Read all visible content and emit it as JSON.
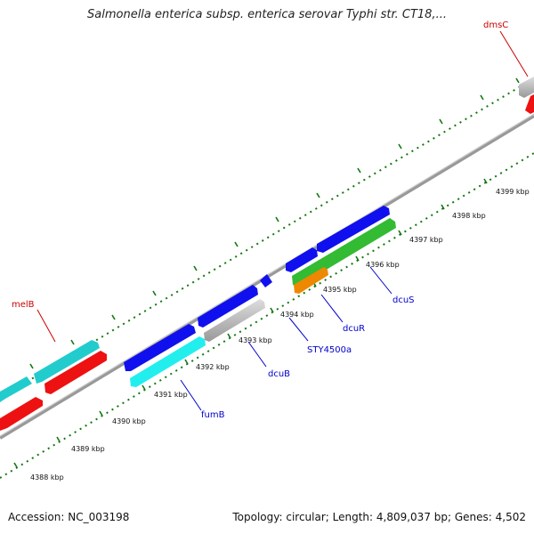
{
  "title": "Salmonella enterica subsp. enterica serovar Typhi str. CT18,...",
  "footer": {
    "accession": "Accession: NC_003198",
    "stats": "Topology: circular; Length: 4,809,037 bp; Genes: 4,502"
  },
  "scale_ticks": [
    "4388 kbp",
    "4389 kbp",
    "4390 kbp",
    "4391 kbp",
    "4392 kbp",
    "4393 kbp",
    "4394 kbp",
    "4395 kbp",
    "4396 kbp",
    "4397 kbp",
    "4398 kbp",
    "4399 kbp"
  ],
  "gene_labels": [
    {
      "name": "melB",
      "color": "#cc0000"
    },
    {
      "name": "dmsC",
      "color": "#cc0000"
    },
    {
      "name": "fumB",
      "color": "#0000cc"
    },
    {
      "name": "dcuB",
      "color": "#0000cc"
    },
    {
      "name": "STY4500a",
      "color": "#0000cc"
    },
    {
      "name": "dcuR",
      "color": "#0000cc"
    },
    {
      "name": "dcuS",
      "color": "#0000cc"
    }
  ],
  "colors": {
    "cds_blue": "#0000ee",
    "cds_red": "#ee0000",
    "cds_cyan": "#22cccc",
    "cds_bright_cyan": "#22eeee",
    "cds_green": "#33bb33",
    "cds_orange": "#ee8800",
    "cds_gray": "#bbbbbb",
    "backbone": "#888888",
    "gc_ticks": "#117711"
  }
}
